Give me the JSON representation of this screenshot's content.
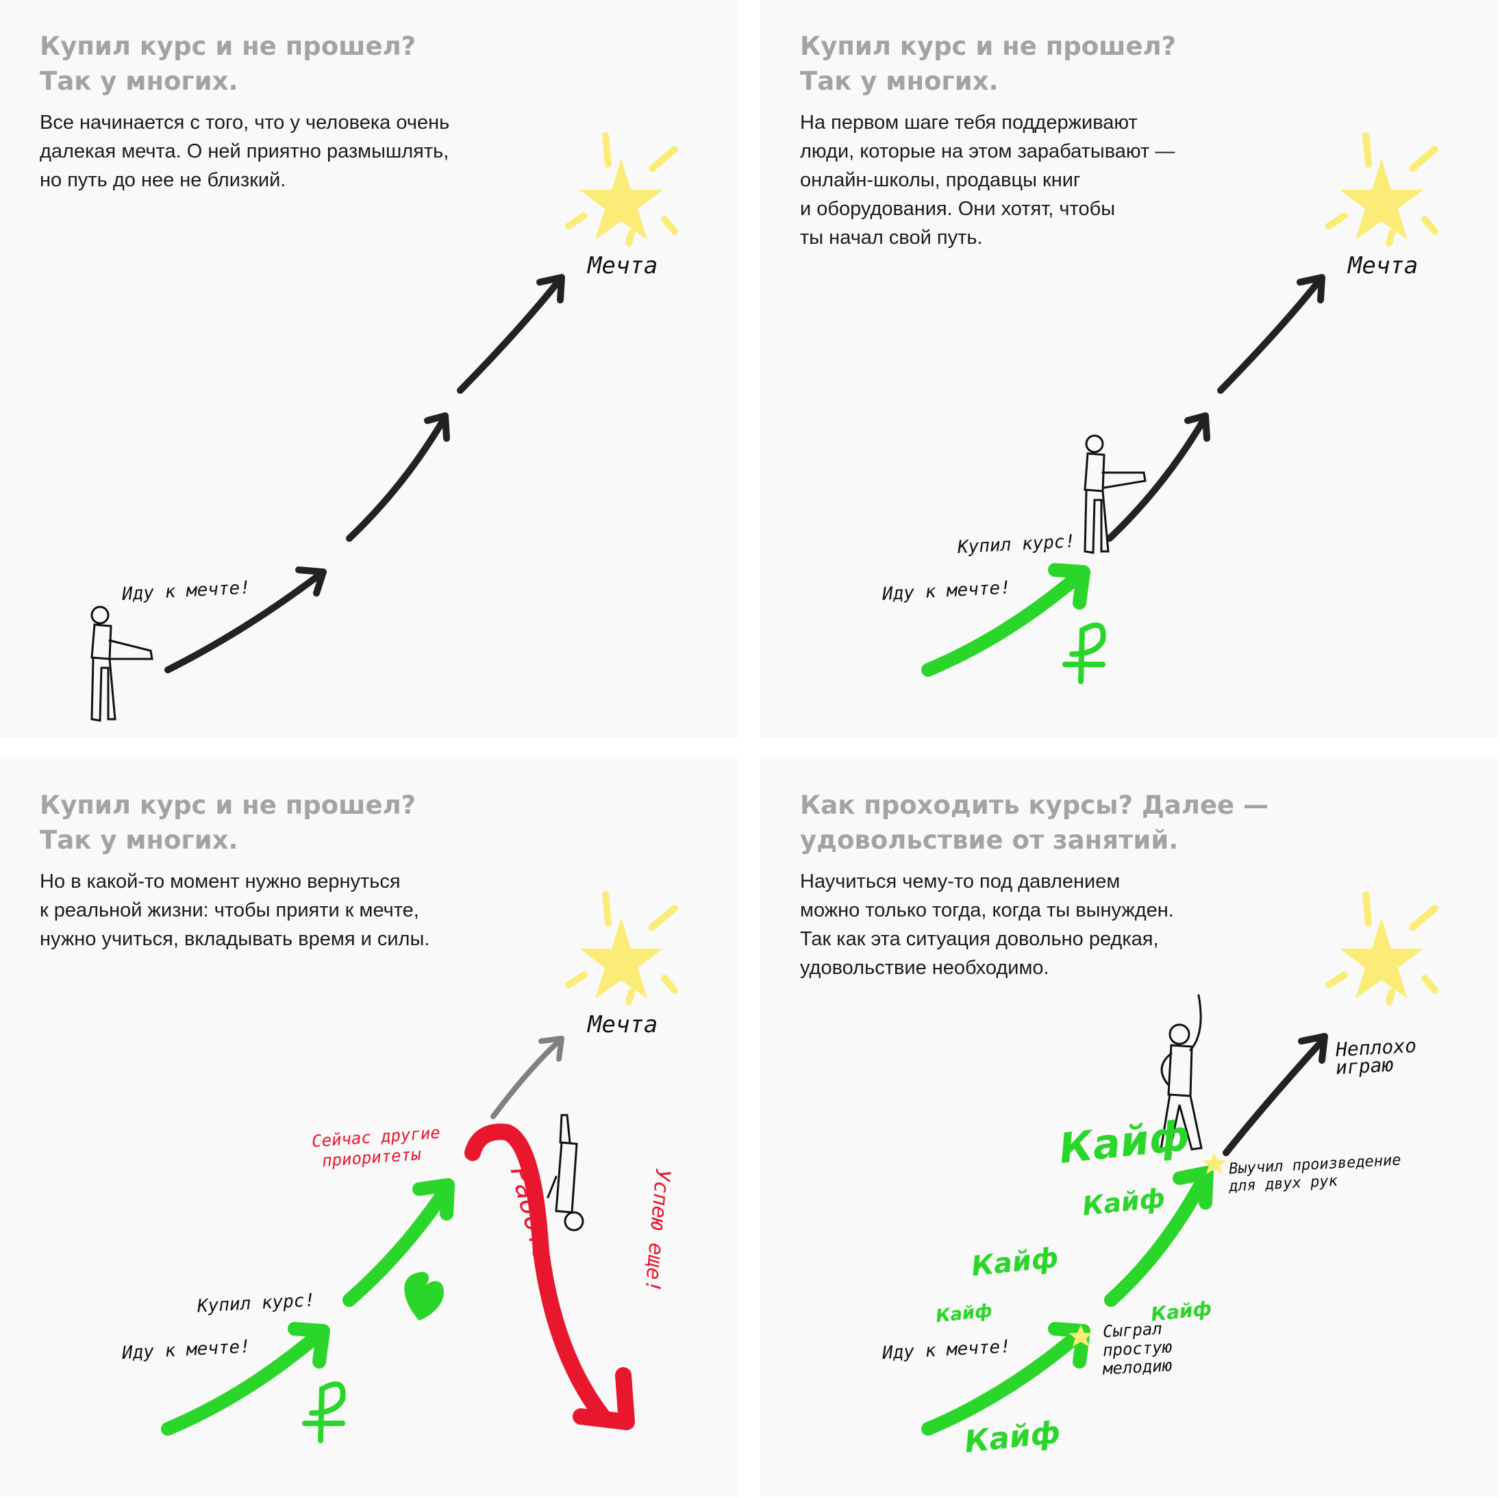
{
  "panels": [
    {
      "title": [
        "Купил курс и не прошел?",
        "Так у многих."
      ],
      "body": [
        "Все начинается с того, что у человека очень",
        "далекая мечта. О ней приятно размышлять,",
        "но путь до нее не близкий."
      ],
      "labels": {
        "dream": "Мечта",
        "going": "Иду к мечте!"
      }
    },
    {
      "title": [
        "Купил курс и не прошел?",
        "Так у многих."
      ],
      "body": [
        "На первом шаге тебя поддерживают",
        "люди, которые на этом зарабатывают —",
        "онлайн-школы, продавцы книг",
        "и оборудования. Они хотят, чтобы",
        "ты начал свой путь."
      ],
      "labels": {
        "dream": "Мечта",
        "bought": "Купил курс!",
        "going": "Иду к мечте!"
      }
    },
    {
      "title": [
        "Купил курс и не прошел?",
        "Так у многих."
      ],
      "body": [
        "Но в какой-то момент нужно вернуться",
        "к реальной жизни: чтобы прияти к мечте,",
        "нужно учиться, вкладывать время и силы."
      ],
      "labels": {
        "dream": "Мечта",
        "priorities_1": "Сейчас другие",
        "priorities_2": "приоритеты",
        "work": "Работа",
        "more": "Успею еще!",
        "bought": "Купил курс!",
        "going": "Иду к мечте!"
      }
    },
    {
      "title": [
        "Как проходить курсы? Далее —",
        "удовольствие от занятий."
      ],
      "body": [
        "Научиться чему-то под давлением",
        "можно только тогда, когда ты вынужден.",
        "Так как эта ситуация довольно редкая,",
        "удовольствие необходимо."
      ],
      "labels": {
        "playing_1": "Неплохо",
        "playing_2": "играю",
        "learned_1": "Выучил произведение",
        "learned_2": "для двух рук",
        "played_1": "Сыграл",
        "played_2": "простую",
        "played_3": "мелодию",
        "going": "Иду к мечте!",
        "joy": "Кайф"
      }
    }
  ],
  "colors": {
    "title": "#a3a3a3",
    "text": "#1b1b1b",
    "star": "#fbec78",
    "green": "#2bd62b",
    "red": "#e8172e",
    "grey_arrow": "#808080",
    "black_arrow": "#222222"
  }
}
